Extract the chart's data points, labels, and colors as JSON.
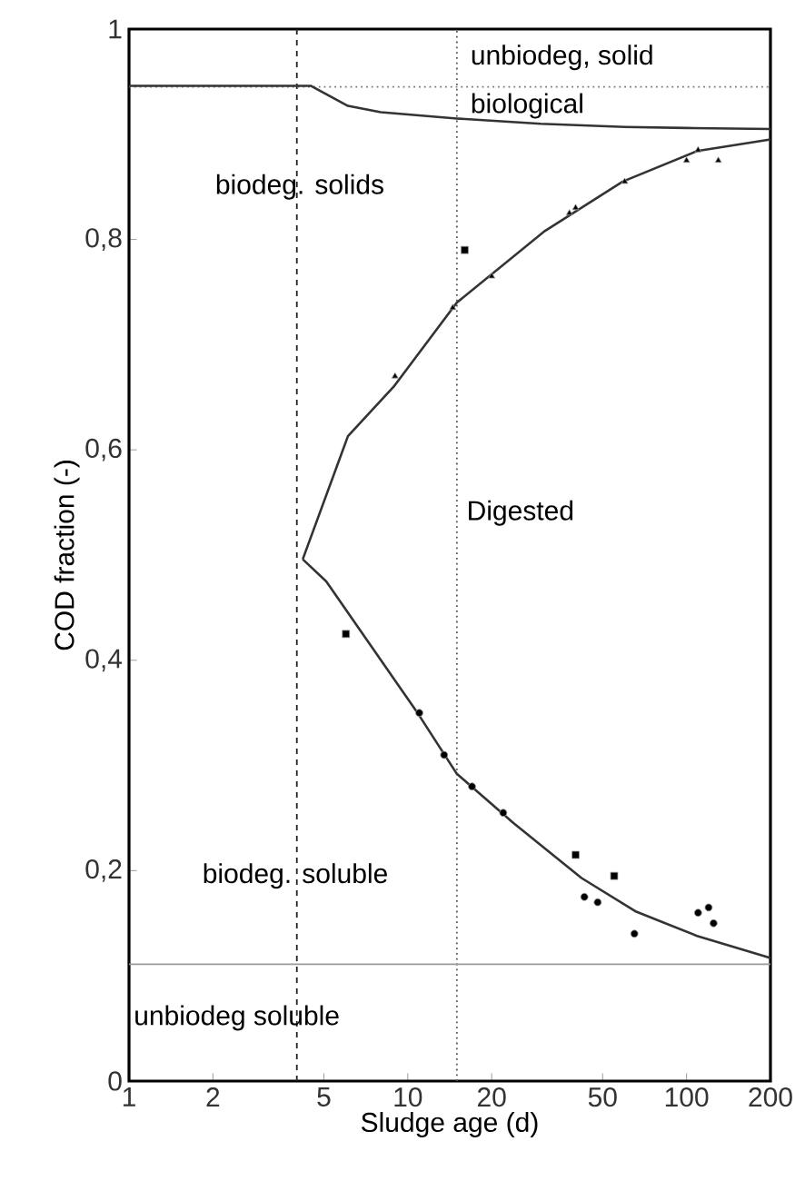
{
  "chart_data": {
    "type": "line",
    "xlabel": "Sludge age (d)",
    "ylabel": "COD fraction (-)",
    "log": "x",
    "xlim": [
      1,
      200
    ],
    "ylim": [
      0,
      1
    ],
    "xticks": [
      1,
      2,
      5,
      10,
      20,
      50,
      100,
      200
    ],
    "yticks": [
      0,
      {
        "value": 0.2,
        "label": "0,2"
      },
      {
        "value": 0.4,
        "label": "0,4"
      },
      {
        "value": 0.6,
        "label": "0,6"
      },
      {
        "value": 0.8,
        "label": "0,8"
      },
      1
    ],
    "marker": "none",
    "line_style": "solid",
    "series": [
      {
        "color": "#333333",
        "x": [
          1,
          4.5,
          6.1,
          8,
          15,
          30,
          60,
          100,
          200
        ],
        "values": [
          0.946,
          0.946,
          0.927,
          0.921,
          0.915,
          0.91,
          0.907,
          0.906,
          0.905
        ]
      },
      {
        "color": "#333333",
        "x": [
          4.2,
          6.1,
          8.9,
          15,
          31,
          59,
          109,
          200
        ],
        "values": [
          0.496,
          0.613,
          0.66,
          0.74,
          0.808,
          0.855,
          0.884,
          0.895
        ]
      },
      {
        "color": "#333333",
        "x": [
          4.2,
          5.1,
          10.9,
          15,
          24,
          42,
          66,
          109,
          200
        ],
        "values": [
          0.496,
          0.475,
          0.349,
          0.292,
          0.245,
          0.193,
          0.161,
          0.138,
          0.117
        ]
      },
      {
        "type": "scatter",
        "marker": "triangle",
        "color": "#a0a0a0",
        "x": [
          9,
          14.5,
          20,
          38,
          40,
          60,
          100,
          110,
          130
        ],
        "values": [
          0.67,
          0.735,
          0.765,
          0.825,
          0.83,
          0.855,
          0.875,
          0.885,
          0.875
        ]
      },
      {
        "type": "scatter",
        "marker": "square",
        "color": "#a0a0a0",
        "x": [
          6,
          16,
          40,
          55
        ],
        "values": [
          0.425,
          0.79,
          0.215,
          0.195
        ]
      },
      {
        "type": "scatter",
        "marker": "circle",
        "color": "#a0a0a0",
        "x": [
          11,
          13.5,
          17,
          22,
          43,
          48,
          65,
          110,
          120,
          125
        ],
        "values": [
          0.35,
          0.31,
          0.28,
          0.255,
          0.175,
          0.17,
          0.14,
          0.16,
          0.165,
          0.15
        ]
      }
    ],
    "ref_lines": [
      {
        "axis": "x",
        "value": 4,
        "color": "#222222",
        "line_style": "dashed"
      },
      {
        "axis": "x",
        "value": 15,
        "color": "#555555",
        "line_style": "dotted"
      },
      {
        "axis": "y",
        "value": 0.945,
        "color": "#777777",
        "line_style": "dotted"
      },
      {
        "axis": "y",
        "value": 0.111,
        "color": "#999999",
        "line_style": "solid"
      }
    ],
    "annotations": [
      "unbiodeg, solid",
      "biological",
      "biodeg. solids",
      "Digested",
      "biodeg. soluble",
      "unbiodeg soluble"
    ]
  }
}
